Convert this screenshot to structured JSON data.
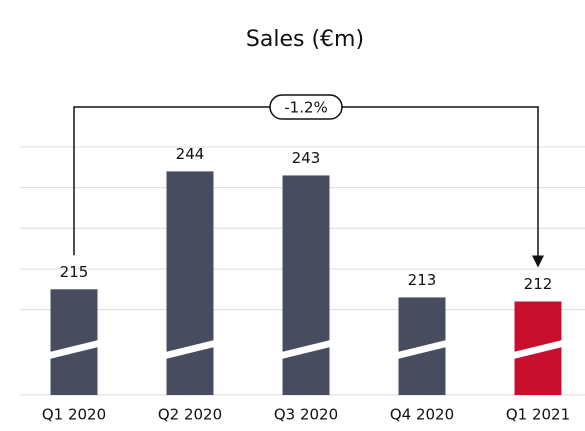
{
  "chart_data": {
    "type": "bar",
    "title": "Sales (€m)",
    "categories": [
      "Q1 2020",
      "Q2 2020",
      "Q3 2020",
      "Q4 2020",
      "Q1 2021"
    ],
    "values": [
      215,
      244,
      243,
      213,
      212
    ],
    "colors": [
      "#474d5e",
      "#474d5e",
      "#474d5e",
      "#474d5e",
      "#c8102e"
    ],
    "ylim": [
      189,
      250
    ],
    "yticks": [
      210,
      220,
      230,
      240,
      250
    ],
    "grid": true,
    "annotation": "-1.2%"
  }
}
